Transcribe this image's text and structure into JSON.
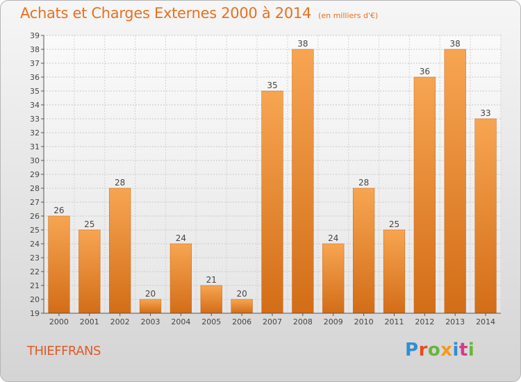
{
  "title": "Achats et Charges Externes 2000 à 2014",
  "subtitle": "(en milliers d'€)",
  "place_name": "THIEFFRANS",
  "logo": {
    "text": "Proxiti",
    "colors": [
      "#2e8fd1",
      "#e84e1b",
      "#6ab43e",
      "#f29b1d",
      "#2e8fd1",
      "#d63a8a",
      "#6ab43e"
    ]
  },
  "chart_data": {
    "type": "bar",
    "categories": [
      "2000",
      "2001",
      "2002",
      "2003",
      "2004",
      "2005",
      "2006",
      "2007",
      "2008",
      "2009",
      "2010",
      "2011",
      "2012",
      "2013",
      "2014"
    ],
    "values": [
      26,
      25,
      28,
      20,
      24,
      21,
      20,
      35,
      38,
      24,
      28,
      25,
      36,
      38,
      33
    ],
    "ylim": [
      19,
      39
    ],
    "yticks": [
      19,
      20,
      21,
      22,
      23,
      24,
      25,
      26,
      27,
      28,
      29,
      30,
      31,
      32,
      33,
      34,
      35,
      36,
      37,
      38,
      39
    ],
    "grid": true,
    "bar_color": "#f08c2e",
    "bar_color_dark": "#d36d17"
  }
}
